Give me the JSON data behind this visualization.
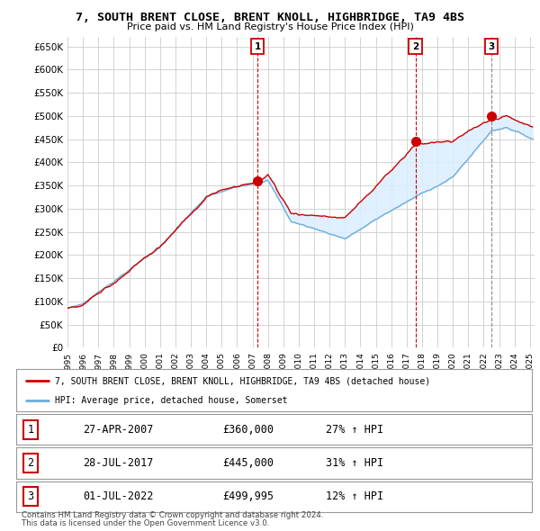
{
  "title": "7, SOUTH BRENT CLOSE, BRENT KNOLL, HIGHBRIDGE, TA9 4BS",
  "subtitle": "Price paid vs. HM Land Registry's House Price Index (HPI)",
  "red_label": "7, SOUTH BRENT CLOSE, BRENT KNOLL, HIGHBRIDGE, TA9 4BS (detached house)",
  "blue_label": "HPI: Average price, detached house, Somerset",
  "footer1": "Contains HM Land Registry data © Crown copyright and database right 2024.",
  "footer2": "This data is licensed under the Open Government Licence v3.0.",
  "ylim": [
    0,
    670000
  ],
  "yticks": [
    0,
    50000,
    100000,
    150000,
    200000,
    250000,
    300000,
    350000,
    400000,
    450000,
    500000,
    550000,
    600000,
    650000
  ],
  "ytick_labels": [
    "£0",
    "£50K",
    "£100K",
    "£150K",
    "£200K",
    "£250K",
    "£300K",
    "£350K",
    "£400K",
    "£450K",
    "£500K",
    "£550K",
    "£600K",
    "£650K"
  ],
  "sale_points": [
    {
      "label": "1",
      "date_str": "27-APR-2007",
      "x": 2007.32,
      "price": 360000,
      "hpi_pct": "27% ↑ HPI"
    },
    {
      "label": "2",
      "date_str": "28-JUL-2017",
      "x": 2017.57,
      "price": 445000,
      "hpi_pct": "31% ↑ HPI"
    },
    {
      "label": "3",
      "date_str": "01-JUL-2022",
      "x": 2022.5,
      "price": 499995,
      "hpi_pct": "12% ↑ HPI"
    }
  ],
  "hpi_color": "#6baed6",
  "price_color": "#cc0000",
  "fill_color": "#ddeeff",
  "background_color": "#ffffff",
  "grid_color": "#cccccc",
  "xlim": [
    1995,
    2025.3
  ]
}
